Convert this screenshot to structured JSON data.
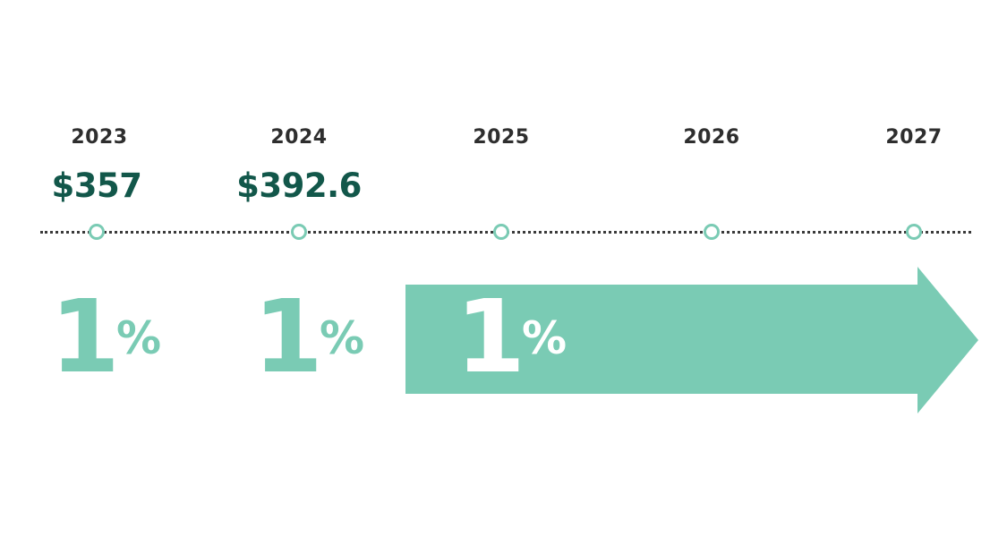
{
  "timeline": {
    "years": [
      "2023",
      "2024",
      "2025",
      "2026",
      "2027"
    ],
    "values": [
      "$357",
      "$392.6"
    ],
    "growth": [
      {
        "number": "1",
        "sign": "%"
      },
      {
        "number": "1",
        "sign": "%"
      },
      {
        "number": "1",
        "sign": "%"
      }
    ]
  },
  "colors": {
    "accent": "#7acbb4",
    "value_text": "#12574a",
    "year_text": "#2e2e2e",
    "dots": "#3a3a3a"
  }
}
